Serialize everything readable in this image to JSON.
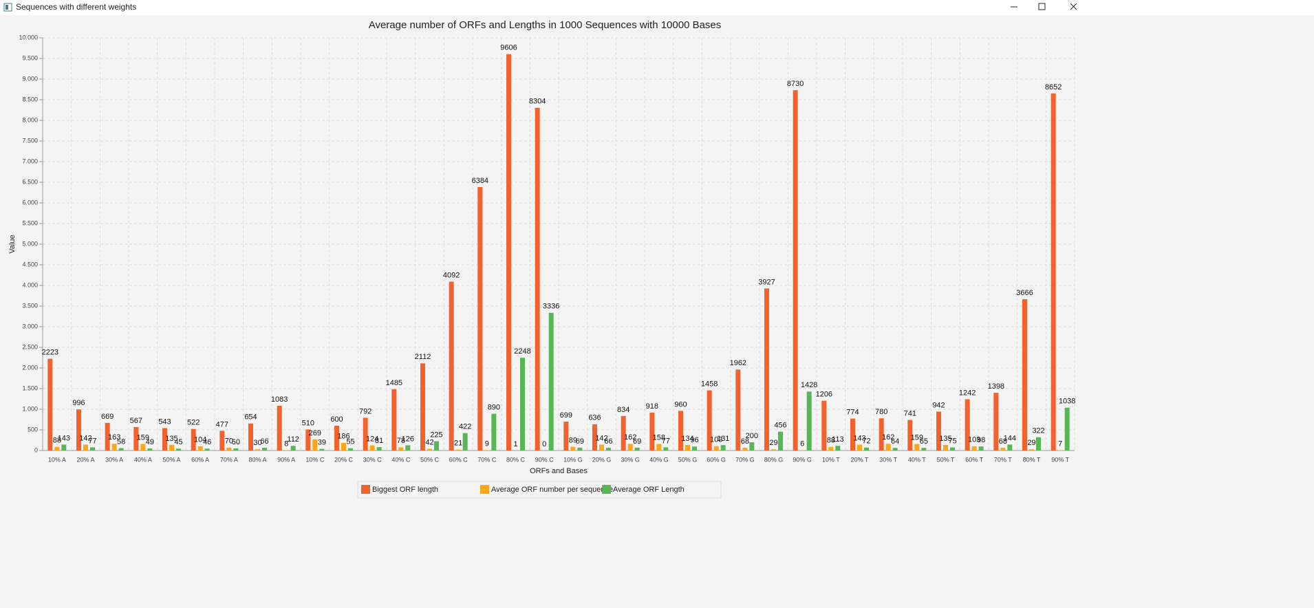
{
  "window": {
    "title": "Sequences with different weights"
  },
  "chart_data": {
    "type": "bar",
    "title": "Average number of ORFs and Lengths in 1000 Sequences with 10000 Bases",
    "x_label": "ORFs and Bases",
    "y_label": "Value",
    "categories": [
      "10% A",
      "20% A",
      "30% A",
      "40% A",
      "50% A",
      "60% A",
      "70% A",
      "80% A",
      "90% A",
      "10% C",
      "20% C",
      "30% C",
      "40% C",
      "50% C",
      "60% C",
      "70% C",
      "80% C",
      "90% C",
      "10% G",
      "20% G",
      "30% G",
      "40% G",
      "50% G",
      "60% G",
      "70% G",
      "80% G",
      "90% G",
      "10% T",
      "20% T",
      "30% T",
      "40% T",
      "50% T",
      "60% T",
      "70% T",
      "80% T",
      "90% T"
    ],
    "series": [
      {
        "name": "Biggest ORF length",
        "color": "#f3622d",
        "values": [
          2223,
          996,
          669,
          567,
          543,
          522,
          477,
          654,
          1083,
          510,
          600,
          792,
          1485,
          2112,
          4092,
          6384,
          9606,
          8304,
          699,
          636,
          834,
          918,
          960,
          1458,
          1962,
          3927,
          8730,
          1206,
          774,
          780,
          741,
          942,
          1242,
          1398,
          3666,
          8652
        ]
      },
      {
        "name": "Average ORF number per sequence",
        "color": "#fba71b",
        "values": [
          88,
          142,
          163,
          159,
          135,
          104,
          70,
          30,
          8,
          269,
          186,
          124,
          78,
          42,
          21,
          9,
          1,
          0,
          89,
          142,
          162,
          158,
          134,
          103,
          68,
          29,
          6,
          88,
          143,
          162,
          159,
          135,
          103,
          68,
          29,
          7
        ]
      },
      {
        "name": "Average ORF Length",
        "color": "#57b757",
        "values": [
          143,
          77,
          58,
          49,
          45,
          46,
          50,
          66,
          112,
          39,
          55,
          81,
          126,
          225,
          422,
          890,
          2248,
          3336,
          69,
          66,
          69,
          77,
          96,
          131,
          200,
          456,
          1428,
          113,
          72,
          64,
          65,
          75,
          98,
          144,
          322,
          1038
        ]
      }
    ],
    "ylim": [
      0,
      10000
    ],
    "yticks": [
      0,
      500,
      {
        "value": 1000,
        "label": "1.000"
      },
      {
        "value": 1500,
        "label": "1.500"
      },
      {
        "value": 2000,
        "label": "2.000"
      },
      {
        "value": 2500,
        "label": "2.500"
      },
      {
        "value": 3000,
        "label": "3.000"
      },
      {
        "value": 3500,
        "label": "3.500"
      },
      {
        "value": 4000,
        "label": "4.000"
      },
      {
        "value": 4500,
        "label": "4.500"
      },
      {
        "value": 5000,
        "label": "5.000"
      },
      {
        "value": 5500,
        "label": "5.500"
      },
      {
        "value": 6000,
        "label": "6.000"
      },
      {
        "value": 6500,
        "label": "6.500"
      },
      {
        "value": 7000,
        "label": "7.000"
      },
      {
        "value": 7500,
        "label": "7.500"
      },
      {
        "value": 8000,
        "label": "8.000"
      },
      {
        "value": 8500,
        "label": "8.500"
      },
      {
        "value": 9000,
        "label": "9.000"
      },
      {
        "value": 9500,
        "label": "9.500"
      },
      {
        "value": 10000,
        "label": "10.000"
      }
    ],
    "grid": true,
    "legend": "bottom"
  }
}
